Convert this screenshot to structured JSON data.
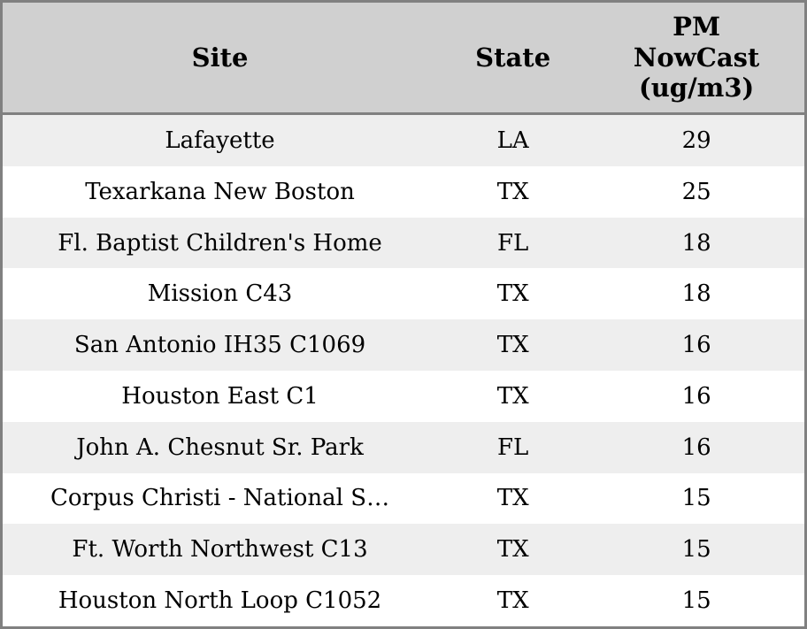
{
  "table": {
    "header": {
      "site": "Site",
      "state": "State",
      "pm": "PM\nNowCast\n(ug/m3)"
    },
    "rows": [
      {
        "site": "Lafayette",
        "state": "LA",
        "pm": "29"
      },
      {
        "site": "Texarkana New Boston",
        "state": "TX",
        "pm": "25"
      },
      {
        "site": "Fl. Baptist Children's Home",
        "state": "FL",
        "pm": "18"
      },
      {
        "site": "Mission C43",
        "state": "TX",
        "pm": "18"
      },
      {
        "site": "San Antonio IH35 C1069",
        "state": "TX",
        "pm": "16"
      },
      {
        "site": "Houston East C1",
        "state": "TX",
        "pm": "16"
      },
      {
        "site": "John A. Chesnut Sr. Park",
        "state": "FL",
        "pm": "16"
      },
      {
        "site": "Corpus Christi - National S…",
        "state": "TX",
        "pm": "15"
      },
      {
        "site": "Ft. Worth Northwest C13",
        "state": "TX",
        "pm": "15"
      },
      {
        "site": "Houston North Loop C1052",
        "state": "TX",
        "pm": "15"
      }
    ]
  },
  "colors": {
    "header_bg": "#d0d0d0",
    "row_alt_bg": "#eeeeee",
    "border": "#808080",
    "text": "#000000"
  },
  "chart_data": {
    "type": "table",
    "title": "",
    "columns": [
      "Site",
      "State",
      "PM NowCast (ug/m3)"
    ],
    "rows": [
      [
        "Lafayette",
        "LA",
        29
      ],
      [
        "Texarkana New Boston",
        "TX",
        25
      ],
      [
        "Fl. Baptist Children's Home",
        "FL",
        18
      ],
      [
        "Mission C43",
        "TX",
        18
      ],
      [
        "San Antonio IH35 C1069",
        "TX",
        16
      ],
      [
        "Houston East C1",
        "TX",
        16
      ],
      [
        "John A. Chesnut Sr. Park",
        "FL",
        16
      ],
      [
        "Corpus Christi - National S…",
        "TX",
        15
      ],
      [
        "Ft. Worth Northwest C13",
        "TX",
        15
      ],
      [
        "Houston North Loop C1052",
        "TX",
        15
      ]
    ],
    "layout_hints": {
      "header_style": "bold serif, gray background",
      "row_striping": "odd rows light gray, even rows white",
      "alignment": "all cells centered"
    }
  }
}
